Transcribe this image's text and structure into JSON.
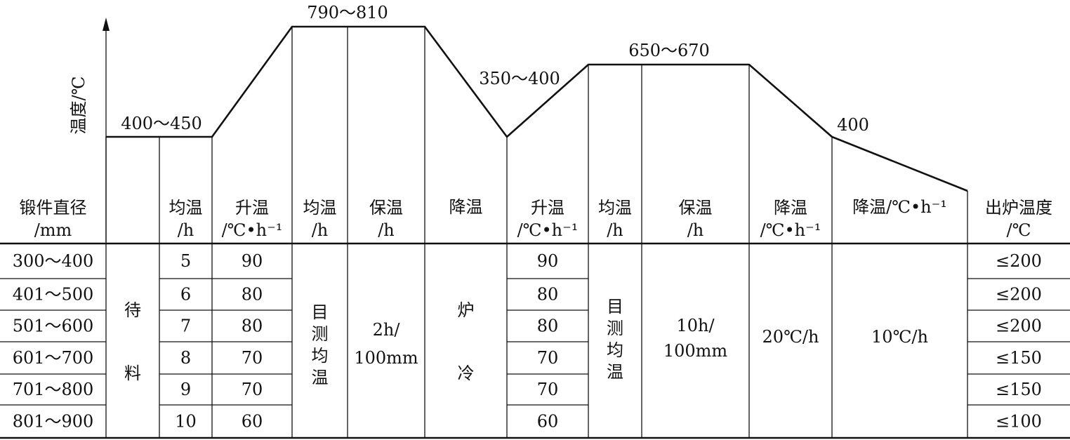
{
  "axis": {
    "ylabel": "温度/℃"
  },
  "curve_labels": [
    "400～450",
    "790～810",
    "350～400",
    "650～670",
    "400"
  ],
  "headers": [
    [
      "锻件直径",
      "/mm"
    ],
    [
      "",
      ""
    ],
    [
      "均温",
      "/h"
    ],
    [
      "升温",
      "/℃•h⁻¹"
    ],
    [
      "均温",
      "/h"
    ],
    [
      "保温",
      "/h"
    ],
    [
      "降温",
      ""
    ],
    [
      "升温",
      "/℃•h⁻¹"
    ],
    [
      "均温",
      "/h"
    ],
    [
      "保温",
      "/h"
    ],
    [
      "降温",
      "/℃•h⁻¹"
    ],
    [
      "降温/℃•h⁻¹",
      ""
    ],
    [
      "出炉温度",
      "/℃"
    ]
  ],
  "rows": [
    {
      "diameter": "300～400",
      "soak_h": "5",
      "heat_rate": "90",
      "heat_rate2": "90",
      "discharge": "≤200"
    },
    {
      "diameter": "401～500",
      "soak_h": "6",
      "heat_rate": "80",
      "heat_rate2": "80",
      "discharge": "≤200"
    },
    {
      "diameter": "501～600",
      "soak_h": "7",
      "heat_rate": "80",
      "heat_rate2": "80",
      "discharge": "≤200"
    },
    {
      "diameter": "601～700",
      "soak_h": "8",
      "heat_rate": "70",
      "heat_rate2": "70",
      "discharge": "≤150"
    },
    {
      "diameter": "701～800",
      "soak_h": "9",
      "heat_rate": "70",
      "heat_rate2": "70",
      "discharge": "≤150"
    },
    {
      "diameter": "801～900",
      "soak_h": "10",
      "heat_rate": "60",
      "heat_rate2": "60",
      "discharge": "≤100"
    }
  ],
  "merged": {
    "wait": [
      "待",
      "料"
    ],
    "soak1": [
      "目",
      "测",
      "均",
      "温"
    ],
    "hold1": [
      "2h/",
      "100mm"
    ],
    "furnace_cool": [
      "炉",
      "冷"
    ],
    "soak2": [
      "目",
      "测",
      "均",
      "温"
    ],
    "hold2": [
      "10h/",
      "100mm"
    ],
    "cool_rate": "20℃/h",
    "cool_rate2": "10℃/h"
  }
}
